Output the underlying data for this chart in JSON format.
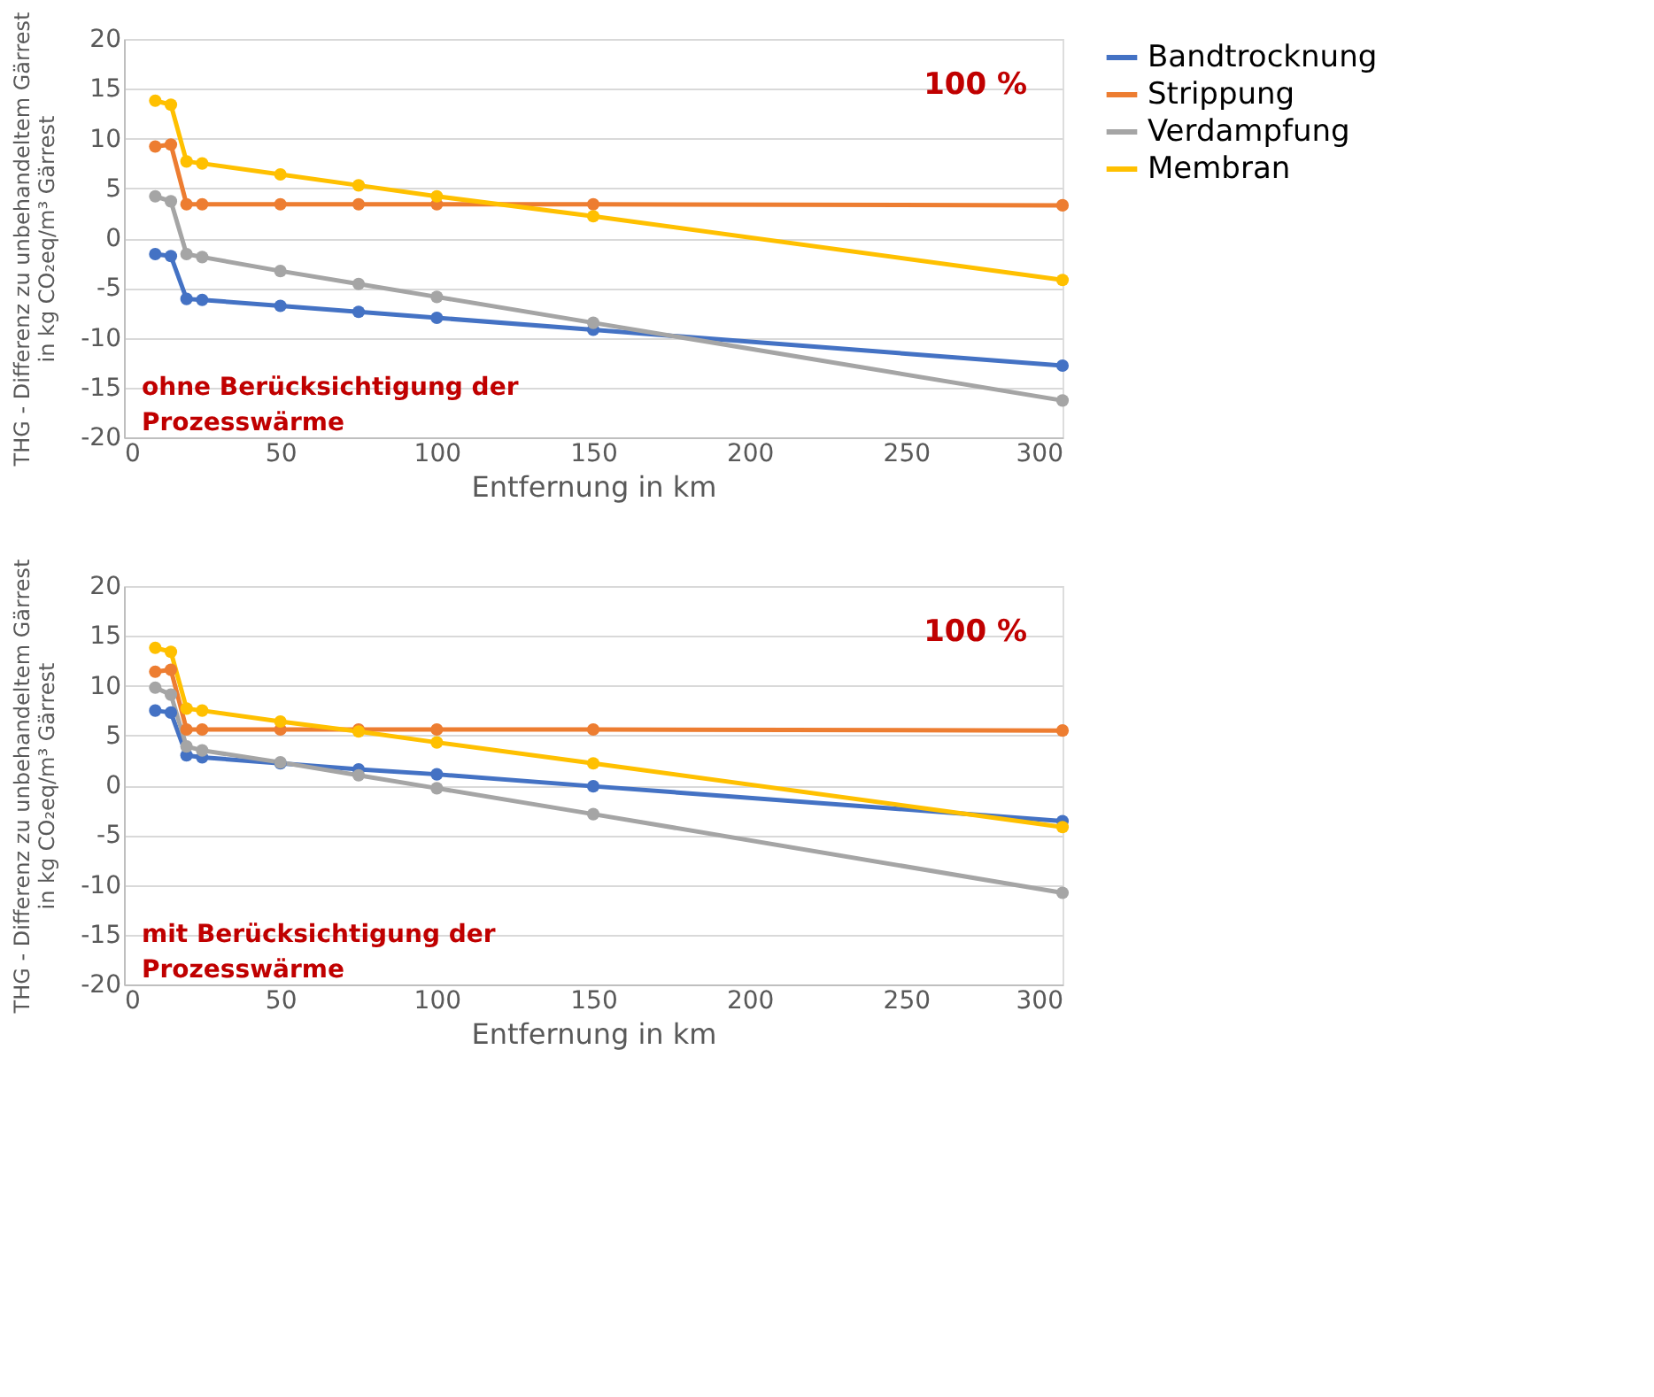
{
  "chart_data": [
    {
      "type": "line",
      "xlabel": "Entfernung in km",
      "ylabel": "THG - Differenz zu unbehandeltem Gärrest\nin kg CO₂eq/m³ Gärrest",
      "x": [
        10,
        15,
        20,
        25,
        50,
        75,
        100,
        150,
        300
      ],
      "xlim": [
        0,
        300
      ],
      "xticks": [
        0,
        50,
        100,
        150,
        200,
        250,
        300
      ],
      "ylim": [
        -20,
        20
      ],
      "yticks": [
        -20,
        -15,
        -10,
        -5,
        0,
        5,
        10,
        15,
        20
      ],
      "grid": "y",
      "legend": "right",
      "marker": "circle",
      "line_style": "solid",
      "annotations": [
        "100 %",
        "ohne Berücksichtigung der\nProzesswärme"
      ],
      "series": [
        {
          "name": "Bandtrocknung",
          "color": "#4472c4",
          "values": [
            -1.6,
            -1.8,
            -6.1,
            -6.2,
            -6.8,
            -7.4,
            -8.0,
            -9.2,
            -12.8
          ]
        },
        {
          "name": "Strippung",
          "color": "#ed7d31",
          "values": [
            9.2,
            9.4,
            3.4,
            3.4,
            3.4,
            3.4,
            3.4,
            3.4,
            3.3
          ]
        },
        {
          "name": "Verdampfung",
          "color": "#a5a5a5",
          "values": [
            4.2,
            3.7,
            -1.6,
            -1.9,
            -3.3,
            -4.6,
            -5.9,
            -8.5,
            -16.3
          ]
        },
        {
          "name": "Membran",
          "color": "#ffc000",
          "values": [
            13.8,
            13.4,
            7.7,
            7.5,
            6.4,
            5.3,
            4.2,
            2.2,
            -4.2
          ]
        }
      ]
    },
    {
      "type": "line",
      "xlabel": "Entfernung in km",
      "ylabel": "THG - Differenz zu unbehandeltem Gärrest\nin kg CO₂eq/m³ Gärrest",
      "x": [
        10,
        15,
        20,
        25,
        50,
        75,
        100,
        150,
        300
      ],
      "xlim": [
        0,
        300
      ],
      "xticks": [
        0,
        50,
        100,
        150,
        200,
        250,
        300
      ],
      "ylim": [
        -20,
        20
      ],
      "yticks": [
        -20,
        -15,
        -10,
        -5,
        0,
        5,
        10,
        15,
        20
      ],
      "grid": "y",
      "legend": false,
      "marker": "circle",
      "line_style": "solid",
      "annotations": [
        "100 %",
        "mit Berücksichtigung der\nProzesswärme"
      ],
      "series": [
        {
          "name": "Bandtrocknung",
          "color": "#4472c4",
          "values": [
            7.5,
            7.3,
            3.0,
            2.8,
            2.2,
            1.6,
            1.1,
            -0.1,
            -3.6
          ]
        },
        {
          "name": "Strippung",
          "color": "#ed7d31",
          "values": [
            11.4,
            11.6,
            5.6,
            5.6,
            5.6,
            5.6,
            5.6,
            5.6,
            5.5
          ]
        },
        {
          "name": "Verdampfung",
          "color": "#a5a5a5",
          "values": [
            9.8,
            9.1,
            3.9,
            3.5,
            2.3,
            1.0,
            -0.3,
            -2.9,
            -10.8
          ]
        },
        {
          "name": "Membran",
          "color": "#ffc000",
          "values": [
            13.8,
            13.4,
            7.7,
            7.5,
            6.4,
            5.4,
            4.3,
            2.2,
            -4.2
          ]
        }
      ]
    }
  ]
}
